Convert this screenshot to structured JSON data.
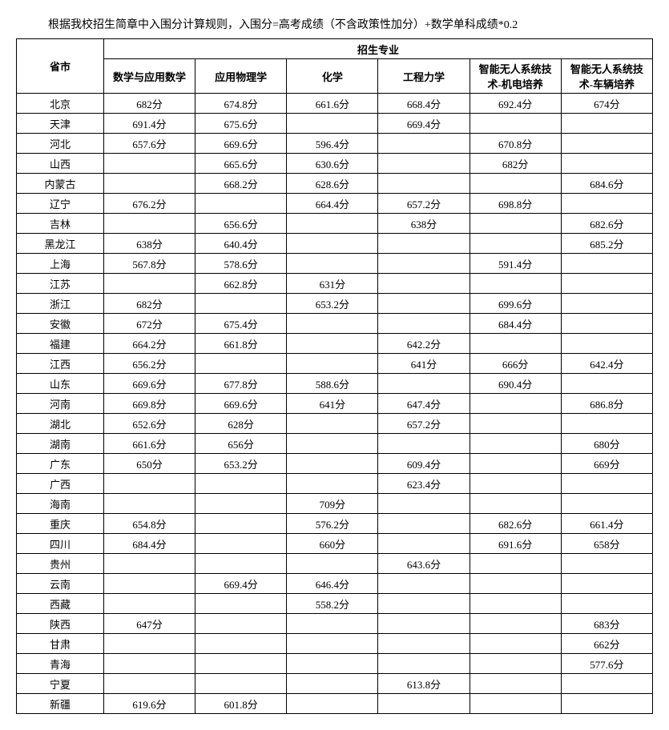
{
  "note": "根据我校招生简章中入围分计算规则，入围分=高考成绩（不含政策性加分）+数学单科成绩*0.2",
  "table": {
    "header_group": "招生专业",
    "province_header": "省市",
    "columns": [
      "数学与应用数学",
      "应用物理学",
      "化学",
      "工程力学",
      "智能无人系统技术-机电培养",
      "智能无人系统技术-车辆培养"
    ],
    "rows": [
      {
        "province": "北京",
        "values": [
          "682分",
          "674.8分",
          "661.6分",
          "668.4分",
          "692.4分",
          "674分"
        ]
      },
      {
        "province": "天津",
        "values": [
          "691.4分",
          "675.6分",
          "",
          "669.4分",
          "",
          ""
        ]
      },
      {
        "province": "河北",
        "values": [
          "657.6分",
          "669.6分",
          "596.4分",
          "",
          "670.8分",
          ""
        ]
      },
      {
        "province": "山西",
        "values": [
          "",
          "665.6分",
          "630.6分",
          "",
          "682分",
          ""
        ]
      },
      {
        "province": "内蒙古",
        "values": [
          "",
          "668.2分",
          "628.6分",
          "",
          "",
          "684.6分"
        ]
      },
      {
        "province": "辽宁",
        "values": [
          "676.2分",
          "",
          "664.4分",
          "657.2分",
          "698.8分",
          ""
        ]
      },
      {
        "province": "吉林",
        "values": [
          "",
          "656.6分",
          "",
          "638分",
          "",
          "682.6分"
        ]
      },
      {
        "province": "黑龙江",
        "values": [
          "638分",
          "640.4分",
          "",
          "",
          "",
          "685.2分"
        ]
      },
      {
        "province": "上海",
        "values": [
          "567.8分",
          "578.6分",
          "",
          "",
          "591.4分",
          ""
        ]
      },
      {
        "province": "江苏",
        "values": [
          "",
          "662.8分",
          "631分",
          "",
          "",
          ""
        ]
      },
      {
        "province": "浙江",
        "values": [
          "682分",
          "",
          "653.2分",
          "",
          "699.6分",
          ""
        ]
      },
      {
        "province": "安徽",
        "values": [
          "672分",
          "675.4分",
          "",
          "",
          "684.4分",
          ""
        ]
      },
      {
        "province": "福建",
        "values": [
          "664.2分",
          "661.8分",
          "",
          "642.2分",
          "",
          ""
        ]
      },
      {
        "province": "江西",
        "values": [
          "656.2分",
          "",
          "",
          "641分",
          "666分",
          "642.4分"
        ]
      },
      {
        "province": "山东",
        "values": [
          "669.6分",
          "677.8分",
          "588.6分",
          "",
          "690.4分",
          ""
        ]
      },
      {
        "province": "河南",
        "values": [
          "669.8分",
          "669.6分",
          "641分",
          "647.4分",
          "",
          "686.8分"
        ]
      },
      {
        "province": "湖北",
        "values": [
          "652.6分",
          "628分",
          "",
          "657.2分",
          "",
          ""
        ]
      },
      {
        "province": "湖南",
        "values": [
          "661.6分",
          "656分",
          "",
          "",
          "",
          "680分"
        ]
      },
      {
        "province": "广东",
        "values": [
          "650分",
          "653.2分",
          "",
          "609.4分",
          "",
          "669分"
        ]
      },
      {
        "province": "广西",
        "values": [
          "",
          "",
          "",
          "623.4分",
          "",
          ""
        ]
      },
      {
        "province": "海南",
        "values": [
          "",
          "",
          "709分",
          "",
          "",
          ""
        ]
      },
      {
        "province": "重庆",
        "values": [
          "654.8分",
          "",
          "576.2分",
          "",
          "682.6分",
          "661.4分"
        ]
      },
      {
        "province": "四川",
        "values": [
          "684.4分",
          "",
          "660分",
          "",
          "691.6分",
          "658分"
        ]
      },
      {
        "province": "贵州",
        "values": [
          "",
          "",
          "",
          "643.6分",
          "",
          ""
        ]
      },
      {
        "province": "云南",
        "values": [
          "",
          "669.4分",
          "646.4分",
          "",
          "",
          ""
        ]
      },
      {
        "province": "西藏",
        "values": [
          "",
          "",
          "558.2分",
          "",
          "",
          ""
        ]
      },
      {
        "province": "陕西",
        "values": [
          "647分",
          "",
          "",
          "",
          "",
          "683分"
        ]
      },
      {
        "province": "甘肃",
        "values": [
          "",
          "",
          "",
          "",
          "",
          "662分"
        ]
      },
      {
        "province": "青海",
        "values": [
          "",
          "",
          "",
          "",
          "",
          "577.6分"
        ]
      },
      {
        "province": "宁夏",
        "values": [
          "",
          "",
          "",
          "613.8分",
          "",
          ""
        ]
      },
      {
        "province": "新疆",
        "values": [
          "619.6分",
          "601.8分",
          "",
          "",
          "",
          ""
        ]
      }
    ]
  }
}
